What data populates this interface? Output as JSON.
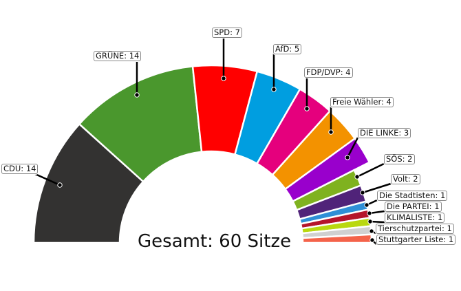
{
  "chart_data": {
    "type": "pie",
    "variant": "semicircle-donut",
    "total_label": "Gesamt: 60 Sitze",
    "total": 60,
    "series": [
      {
        "name": "CDU",
        "value": 14,
        "label": "CDU: 14",
        "color": "#333231"
      },
      {
        "name": "GRÜNE",
        "value": 14,
        "label": "GRÜNE: 14",
        "color": "#4a972d"
      },
      {
        "name": "SPD",
        "value": 7,
        "label": "SPD: 7",
        "color": "#ff0000"
      },
      {
        "name": "AfD",
        "value": 5,
        "label": "AfD: 5",
        "color": "#009ee0"
      },
      {
        "name": "FDP/DVP",
        "value": 4,
        "label": "FDP/DVP: 4",
        "color": "#e5007d"
      },
      {
        "name": "Freie Wähler",
        "value": 4,
        "label": "Freie Wähler: 4",
        "color": "#f39200"
      },
      {
        "name": "DIE LINKE",
        "value": 3,
        "label": "DIE LINKE: 3",
        "color": "#9900cc"
      },
      {
        "name": "SÖS",
        "value": 2,
        "label": "SÖS: 2",
        "color": "#7fb21f"
      },
      {
        "name": "Volt",
        "value": 2,
        "label": "Volt: 2",
        "color": "#502379"
      },
      {
        "name": "Die Stadtisten",
        "value": 1,
        "label": "Die Stadtisten: 1",
        "color": "#2f8fd6"
      },
      {
        "name": "Die PARTEI",
        "value": 1,
        "label": "Die PARTEI: 1",
        "color": "#b5152b"
      },
      {
        "name": "KLIMALISTE",
        "value": 1,
        "label": "KLIMALISTE: 1",
        "color": "#b9d80f"
      },
      {
        "name": "Tierschutzpartei",
        "value": 1,
        "label": "Tierschutzpartei: 1",
        "color": "#d0d0d0"
      },
      {
        "name": "Stuttgarter Liste",
        "value": 1,
        "label": "Stuttgarter Liste: 1",
        "color": "#f4634a"
      }
    ]
  }
}
